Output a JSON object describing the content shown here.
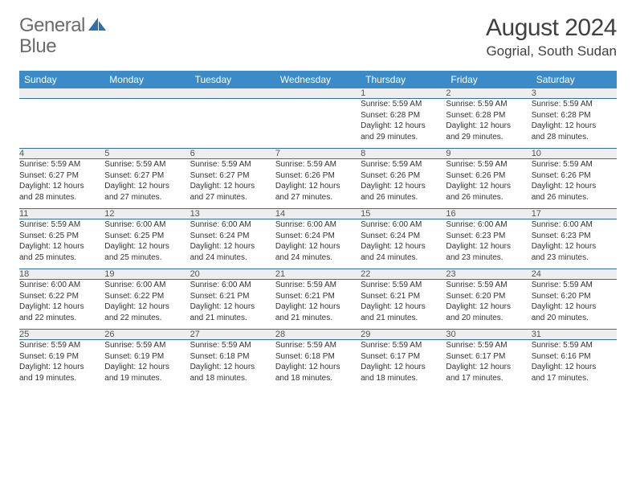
{
  "brand": {
    "word1": "General",
    "word2": "Blue",
    "text_color": "#6b6b6b",
    "accent_color": "#2f6fb0"
  },
  "title": "August 2024",
  "location": "Gogrial, South Sudan",
  "colors": {
    "header_bg": "#3b8bc9",
    "header_text": "#ffffff",
    "daynum_bg": "#eeeeee",
    "rule": "#2f6fb0",
    "background": "#ffffff"
  },
  "weekdays": [
    "Sunday",
    "Monday",
    "Tuesday",
    "Wednesday",
    "Thursday",
    "Friday",
    "Saturday"
  ],
  "weeks": [
    [
      {
        "n": "",
        "sunrise": "",
        "sunset": "",
        "daylight1": "",
        "daylight2": ""
      },
      {
        "n": "",
        "sunrise": "",
        "sunset": "",
        "daylight1": "",
        "daylight2": ""
      },
      {
        "n": "",
        "sunrise": "",
        "sunset": "",
        "daylight1": "",
        "daylight2": ""
      },
      {
        "n": "",
        "sunrise": "",
        "sunset": "",
        "daylight1": "",
        "daylight2": ""
      },
      {
        "n": "1",
        "sunrise": "Sunrise: 5:59 AM",
        "sunset": "Sunset: 6:28 PM",
        "daylight1": "Daylight: 12 hours",
        "daylight2": "and 29 minutes."
      },
      {
        "n": "2",
        "sunrise": "Sunrise: 5:59 AM",
        "sunset": "Sunset: 6:28 PM",
        "daylight1": "Daylight: 12 hours",
        "daylight2": "and 29 minutes."
      },
      {
        "n": "3",
        "sunrise": "Sunrise: 5:59 AM",
        "sunset": "Sunset: 6:28 PM",
        "daylight1": "Daylight: 12 hours",
        "daylight2": "and 28 minutes."
      }
    ],
    [
      {
        "n": "4",
        "sunrise": "Sunrise: 5:59 AM",
        "sunset": "Sunset: 6:27 PM",
        "daylight1": "Daylight: 12 hours",
        "daylight2": "and 28 minutes."
      },
      {
        "n": "5",
        "sunrise": "Sunrise: 5:59 AM",
        "sunset": "Sunset: 6:27 PM",
        "daylight1": "Daylight: 12 hours",
        "daylight2": "and 27 minutes."
      },
      {
        "n": "6",
        "sunrise": "Sunrise: 5:59 AM",
        "sunset": "Sunset: 6:27 PM",
        "daylight1": "Daylight: 12 hours",
        "daylight2": "and 27 minutes."
      },
      {
        "n": "7",
        "sunrise": "Sunrise: 5:59 AM",
        "sunset": "Sunset: 6:26 PM",
        "daylight1": "Daylight: 12 hours",
        "daylight2": "and 27 minutes."
      },
      {
        "n": "8",
        "sunrise": "Sunrise: 5:59 AM",
        "sunset": "Sunset: 6:26 PM",
        "daylight1": "Daylight: 12 hours",
        "daylight2": "and 26 minutes."
      },
      {
        "n": "9",
        "sunrise": "Sunrise: 5:59 AM",
        "sunset": "Sunset: 6:26 PM",
        "daylight1": "Daylight: 12 hours",
        "daylight2": "and 26 minutes."
      },
      {
        "n": "10",
        "sunrise": "Sunrise: 5:59 AM",
        "sunset": "Sunset: 6:26 PM",
        "daylight1": "Daylight: 12 hours",
        "daylight2": "and 26 minutes."
      }
    ],
    [
      {
        "n": "11",
        "sunrise": "Sunrise: 5:59 AM",
        "sunset": "Sunset: 6:25 PM",
        "daylight1": "Daylight: 12 hours",
        "daylight2": "and 25 minutes."
      },
      {
        "n": "12",
        "sunrise": "Sunrise: 6:00 AM",
        "sunset": "Sunset: 6:25 PM",
        "daylight1": "Daylight: 12 hours",
        "daylight2": "and 25 minutes."
      },
      {
        "n": "13",
        "sunrise": "Sunrise: 6:00 AM",
        "sunset": "Sunset: 6:24 PM",
        "daylight1": "Daylight: 12 hours",
        "daylight2": "and 24 minutes."
      },
      {
        "n": "14",
        "sunrise": "Sunrise: 6:00 AM",
        "sunset": "Sunset: 6:24 PM",
        "daylight1": "Daylight: 12 hours",
        "daylight2": "and 24 minutes."
      },
      {
        "n": "15",
        "sunrise": "Sunrise: 6:00 AM",
        "sunset": "Sunset: 6:24 PM",
        "daylight1": "Daylight: 12 hours",
        "daylight2": "and 24 minutes."
      },
      {
        "n": "16",
        "sunrise": "Sunrise: 6:00 AM",
        "sunset": "Sunset: 6:23 PM",
        "daylight1": "Daylight: 12 hours",
        "daylight2": "and 23 minutes."
      },
      {
        "n": "17",
        "sunrise": "Sunrise: 6:00 AM",
        "sunset": "Sunset: 6:23 PM",
        "daylight1": "Daylight: 12 hours",
        "daylight2": "and 23 minutes."
      }
    ],
    [
      {
        "n": "18",
        "sunrise": "Sunrise: 6:00 AM",
        "sunset": "Sunset: 6:22 PM",
        "daylight1": "Daylight: 12 hours",
        "daylight2": "and 22 minutes."
      },
      {
        "n": "19",
        "sunrise": "Sunrise: 6:00 AM",
        "sunset": "Sunset: 6:22 PM",
        "daylight1": "Daylight: 12 hours",
        "daylight2": "and 22 minutes."
      },
      {
        "n": "20",
        "sunrise": "Sunrise: 6:00 AM",
        "sunset": "Sunset: 6:21 PM",
        "daylight1": "Daylight: 12 hours",
        "daylight2": "and 21 minutes."
      },
      {
        "n": "21",
        "sunrise": "Sunrise: 5:59 AM",
        "sunset": "Sunset: 6:21 PM",
        "daylight1": "Daylight: 12 hours",
        "daylight2": "and 21 minutes."
      },
      {
        "n": "22",
        "sunrise": "Sunrise: 5:59 AM",
        "sunset": "Sunset: 6:21 PM",
        "daylight1": "Daylight: 12 hours",
        "daylight2": "and 21 minutes."
      },
      {
        "n": "23",
        "sunrise": "Sunrise: 5:59 AM",
        "sunset": "Sunset: 6:20 PM",
        "daylight1": "Daylight: 12 hours",
        "daylight2": "and 20 minutes."
      },
      {
        "n": "24",
        "sunrise": "Sunrise: 5:59 AM",
        "sunset": "Sunset: 6:20 PM",
        "daylight1": "Daylight: 12 hours",
        "daylight2": "and 20 minutes."
      }
    ],
    [
      {
        "n": "25",
        "sunrise": "Sunrise: 5:59 AM",
        "sunset": "Sunset: 6:19 PM",
        "daylight1": "Daylight: 12 hours",
        "daylight2": "and 19 minutes."
      },
      {
        "n": "26",
        "sunrise": "Sunrise: 5:59 AM",
        "sunset": "Sunset: 6:19 PM",
        "daylight1": "Daylight: 12 hours",
        "daylight2": "and 19 minutes."
      },
      {
        "n": "27",
        "sunrise": "Sunrise: 5:59 AM",
        "sunset": "Sunset: 6:18 PM",
        "daylight1": "Daylight: 12 hours",
        "daylight2": "and 18 minutes."
      },
      {
        "n": "28",
        "sunrise": "Sunrise: 5:59 AM",
        "sunset": "Sunset: 6:18 PM",
        "daylight1": "Daylight: 12 hours",
        "daylight2": "and 18 minutes."
      },
      {
        "n": "29",
        "sunrise": "Sunrise: 5:59 AM",
        "sunset": "Sunset: 6:17 PM",
        "daylight1": "Daylight: 12 hours",
        "daylight2": "and 18 minutes."
      },
      {
        "n": "30",
        "sunrise": "Sunrise: 5:59 AM",
        "sunset": "Sunset: 6:17 PM",
        "daylight1": "Daylight: 12 hours",
        "daylight2": "and 17 minutes."
      },
      {
        "n": "31",
        "sunrise": "Sunrise: 5:59 AM",
        "sunset": "Sunset: 6:16 PM",
        "daylight1": "Daylight: 12 hours",
        "daylight2": "and 17 minutes."
      }
    ]
  ]
}
